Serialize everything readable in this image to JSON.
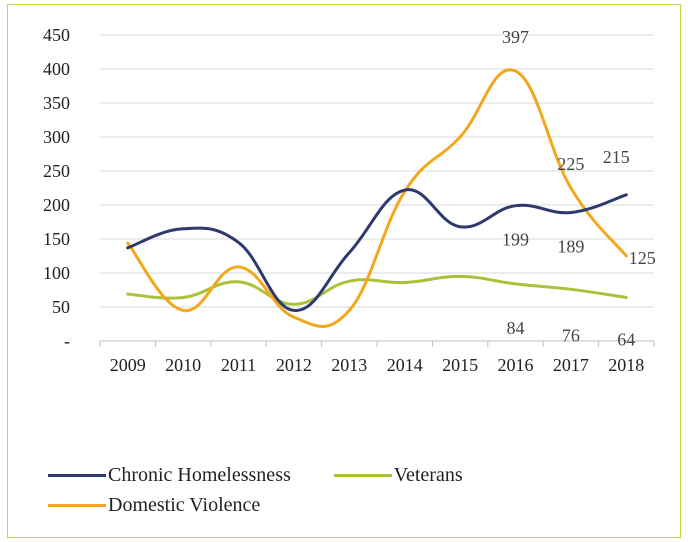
{
  "chart_data": {
    "type": "line",
    "categories": [
      "2009",
      "2010",
      "2011",
      "2012",
      "2013",
      "2014",
      "2015",
      "2016",
      "2017",
      "2018"
    ],
    "ylim": [
      0,
      450
    ],
    "yticks": [
      {
        "value": 0,
        "label": "-"
      },
      {
        "value": 50,
        "label": "50"
      },
      {
        "value": 100,
        "label": "100"
      },
      {
        "value": 150,
        "label": "150"
      },
      {
        "value": 200,
        "label": "200"
      },
      {
        "value": 250,
        "label": "250"
      },
      {
        "value": 300,
        "label": "300"
      },
      {
        "value": 350,
        "label": "350"
      },
      {
        "value": 400,
        "label": "400"
      },
      {
        "value": 450,
        "label": "450"
      }
    ],
    "grid": true,
    "legend_position": "bottom-left",
    "series": [
      {
        "name": "Chronic Homelessness",
        "color": "#2e3a6e",
        "values": [
          137,
          165,
          145,
          45,
          130,
          222,
          168,
          199,
          189,
          215
        ],
        "data_labels": {
          "7": "199",
          "8": "189",
          "9": "215"
        }
      },
      {
        "name": "Veterans",
        "color": "#a8c23a",
        "values": [
          69,
          64,
          87,
          54,
          88,
          86,
          95,
          84,
          76,
          64
        ],
        "data_labels": {
          "7": "84",
          "8": "76",
          "9": "64"
        }
      },
      {
        "name": "Domestic Violence",
        "color": "#f2a81d",
        "values": [
          144,
          45,
          109,
          35,
          45,
          220,
          300,
          397,
          225,
          125
        ],
        "data_labels": {
          "7": "397",
          "8": "225",
          "9": "125"
        }
      }
    ]
  }
}
